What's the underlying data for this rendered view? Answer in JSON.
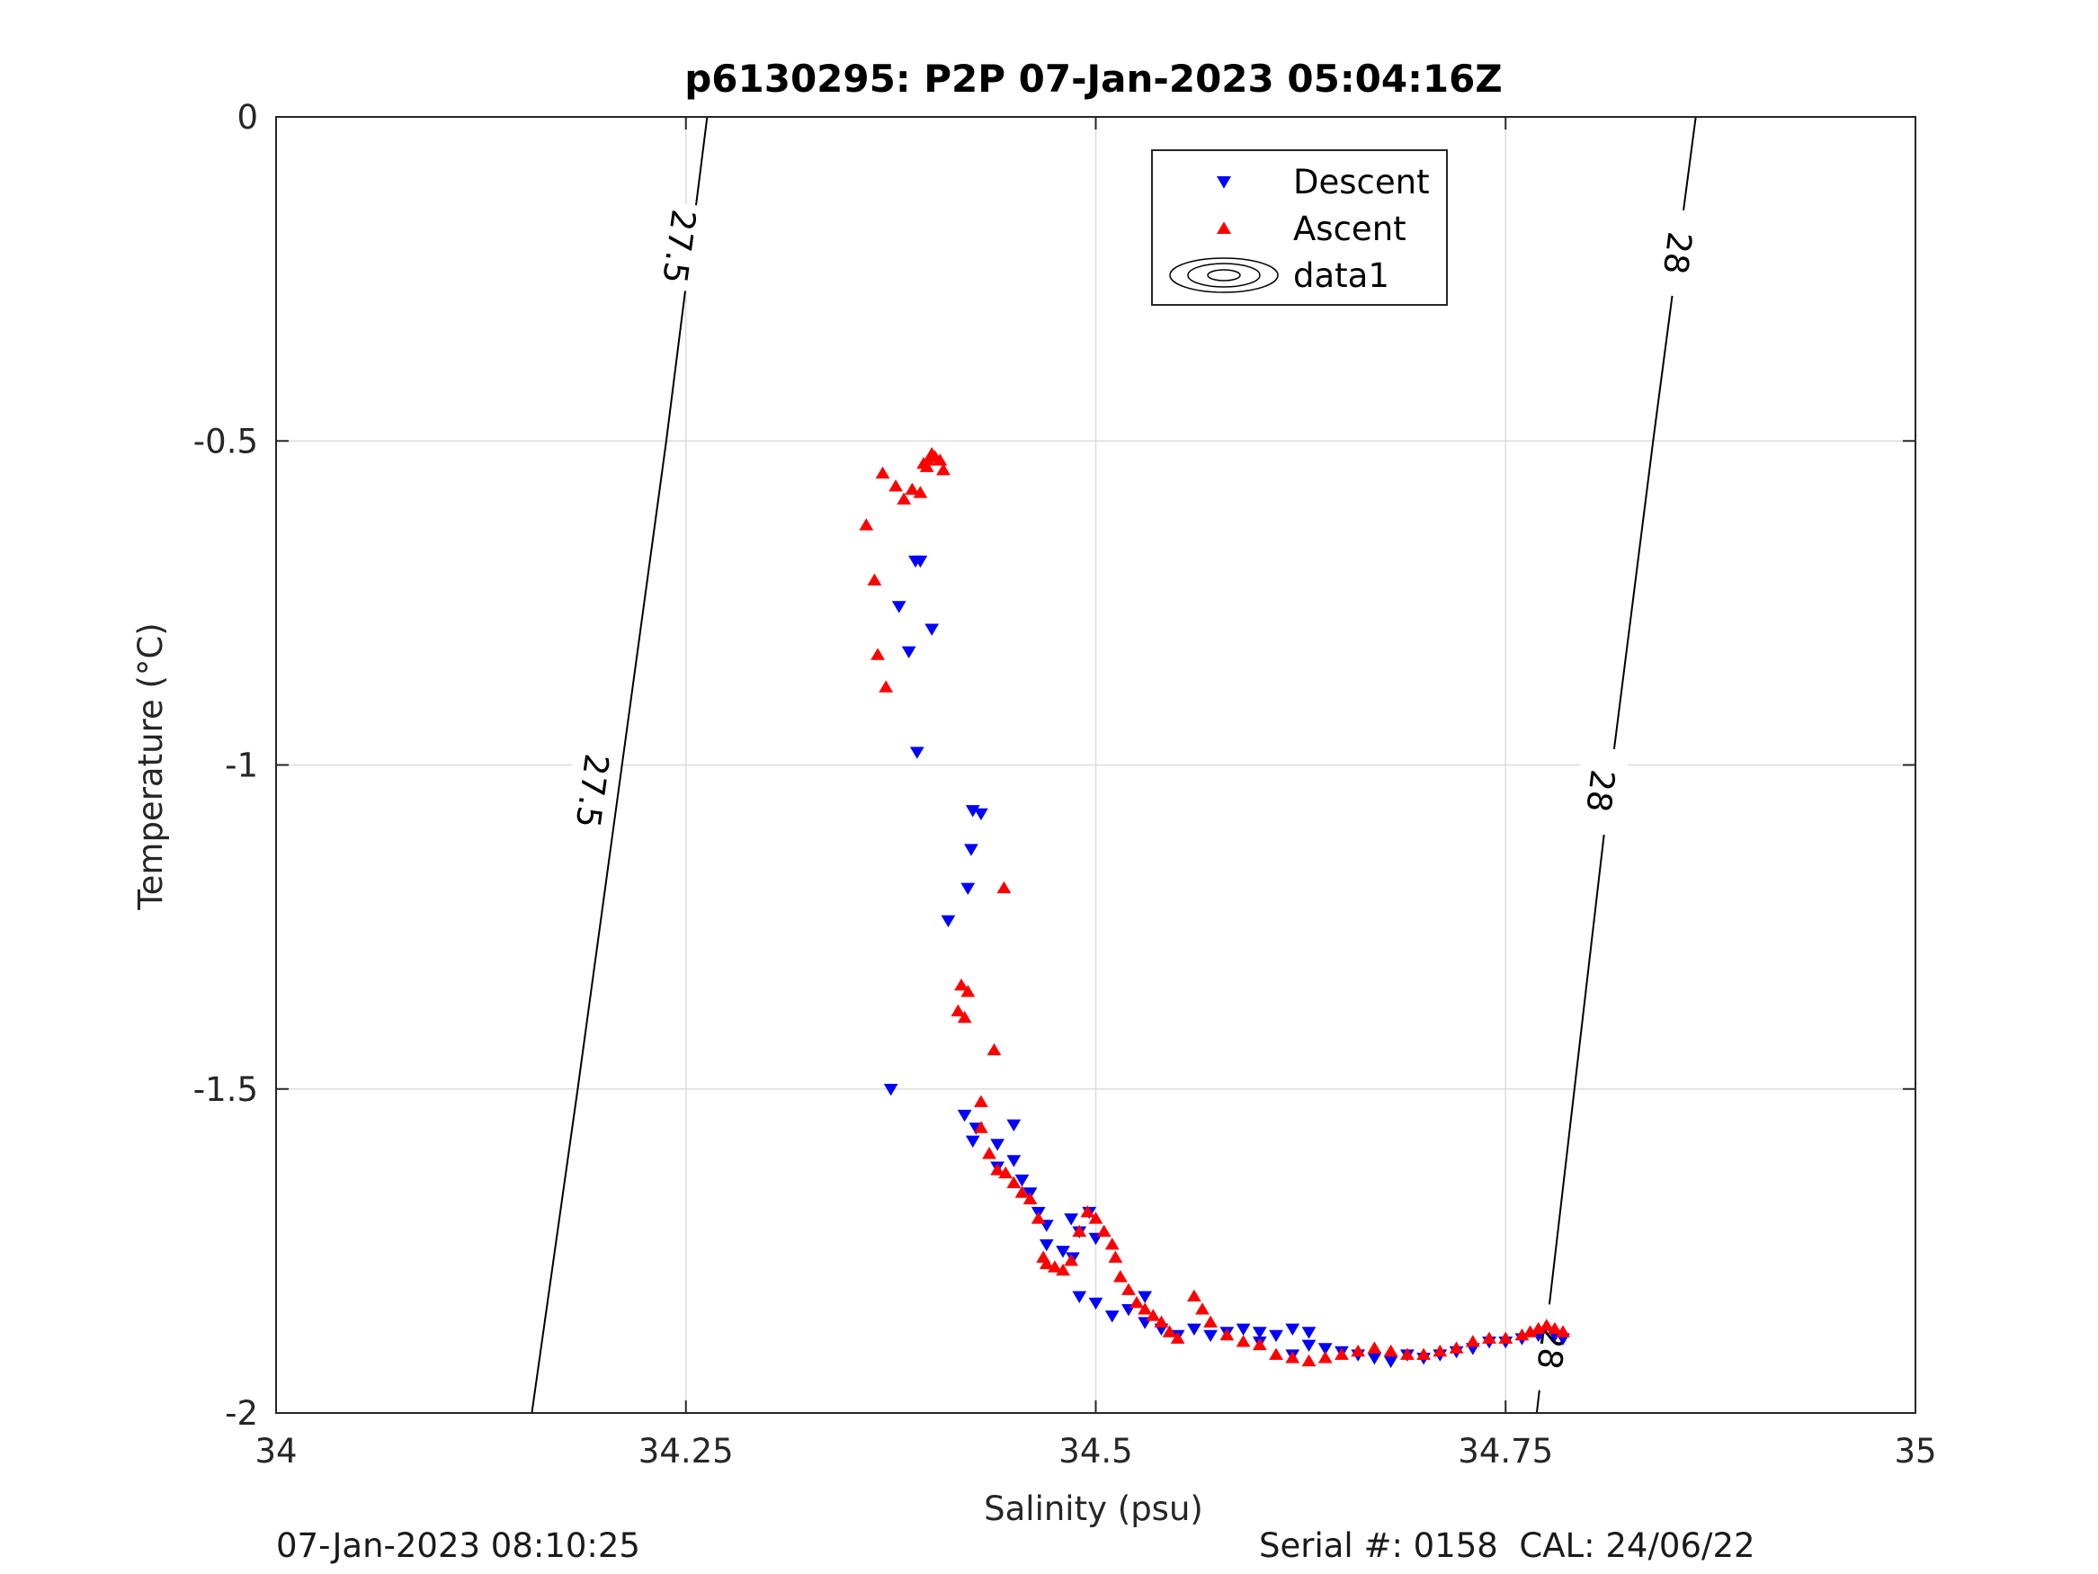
{
  "chart_data": {
    "type": "scatter",
    "title": "p6130295: P2P 07-Jan-2023 05:04:16Z",
    "xlabel": "Salinity (psu)",
    "ylabel": "Temperature (°C)",
    "xlim": [
      34,
      35
    ],
    "ylim": [
      -2,
      0
    ],
    "xticks": [
      34,
      34.25,
      34.5,
      34.75,
      35
    ],
    "xtick_labels": [
      "34",
      "34.25",
      "34.5",
      "34.75",
      "35"
    ],
    "yticks": [
      0,
      -0.5,
      -1,
      -1.5,
      -2
    ],
    "ytick_labels": [
      "0",
      "-0.5",
      "-1",
      "-1.5",
      "-2"
    ],
    "grid": true,
    "legend": {
      "placement": "top-right",
      "entries": [
        {
          "label": "Descent",
          "color": "#0000ff",
          "marker": "triangle-down"
        },
        {
          "label": "Ascent",
          "color": "#ff0000",
          "marker": "triangle-up"
        },
        {
          "label": "data1",
          "color": "#000000",
          "marker": "contour"
        }
      ]
    },
    "contours": [
      {
        "label": "27.5",
        "points": [
          [
            34.156,
            -2.0
          ],
          [
            34.184,
            -1.5
          ],
          [
            34.211,
            -1.0
          ],
          [
            34.238,
            -0.5
          ],
          [
            34.263,
            0.0
          ]
        ],
        "label_positions": [
          [
            34.246,
            -0.2
          ],
          [
            34.193,
            -1.04
          ]
        ]
      },
      {
        "label": "28",
        "points": [
          [
            34.769,
            -2.0
          ],
          [
            34.792,
            -1.5
          ],
          [
            34.815,
            -1.0
          ],
          [
            34.84,
            -0.5
          ],
          [
            34.866,
            0.0
          ]
        ],
        "label_positions": [
          [
            34.855,
            -0.21
          ],
          [
            34.808,
            -1.04
          ],
          [
            34.778,
            -1.9
          ]
        ]
      }
    ],
    "series": [
      {
        "name": "Descent",
        "color": "#0000ff",
        "marker": "triangle-down",
        "points": [
          [
            34.39,
            -0.685
          ],
          [
            34.393,
            -0.685
          ],
          [
            34.38,
            -0.755
          ],
          [
            34.386,
            -0.825
          ],
          [
            34.4,
            -0.79
          ],
          [
            34.391,
            -0.98
          ],
          [
            34.425,
            -1.07
          ],
          [
            34.43,
            -1.075
          ],
          [
            34.424,
            -1.13
          ],
          [
            34.422,
            -1.19
          ],
          [
            34.41,
            -1.24
          ],
          [
            34.375,
            -1.5
          ],
          [
            34.42,
            -1.54
          ],
          [
            34.427,
            -1.56
          ],
          [
            34.425,
            -1.58
          ],
          [
            34.44,
            -1.585
          ],
          [
            34.45,
            -1.555
          ],
          [
            34.45,
            -1.61
          ],
          [
            34.44,
            -1.62
          ],
          [
            34.455,
            -1.64
          ],
          [
            34.46,
            -1.66
          ],
          [
            34.465,
            -1.69
          ],
          [
            34.47,
            -1.71
          ],
          [
            34.47,
            -1.74
          ],
          [
            34.48,
            -1.75
          ],
          [
            34.486,
            -1.76
          ],
          [
            34.49,
            -1.72
          ],
          [
            34.496,
            -1.69
          ],
          [
            34.485,
            -1.7
          ],
          [
            34.5,
            -1.73
          ],
          [
            34.49,
            -1.82
          ],
          [
            34.5,
            -1.83
          ],
          [
            34.51,
            -1.85
          ],
          [
            34.52,
            -1.84
          ],
          [
            34.53,
            -1.82
          ],
          [
            34.53,
            -1.86
          ],
          [
            34.54,
            -1.87
          ],
          [
            34.55,
            -1.88
          ],
          [
            34.56,
            -1.87
          ],
          [
            34.57,
            -1.88
          ],
          [
            34.58,
            -1.875
          ],
          [
            34.59,
            -1.87
          ],
          [
            34.6,
            -1.875
          ],
          [
            34.61,
            -1.88
          ],
          [
            34.62,
            -1.87
          ],
          [
            34.63,
            -1.875
          ],
          [
            34.6,
            -1.89
          ],
          [
            34.62,
            -1.91
          ],
          [
            34.63,
            -1.895
          ],
          [
            34.64,
            -1.9
          ],
          [
            34.65,
            -1.905
          ],
          [
            34.66,
            -1.91
          ],
          [
            34.67,
            -1.915
          ],
          [
            34.68,
            -1.92
          ],
          [
            34.69,
            -1.91
          ],
          [
            34.7,
            -1.915
          ],
          [
            34.71,
            -1.91
          ],
          [
            34.72,
            -1.905
          ],
          [
            34.73,
            -1.9
          ],
          [
            34.74,
            -1.89
          ],
          [
            34.75,
            -1.89
          ],
          [
            34.76,
            -1.885
          ],
          [
            34.77,
            -1.88
          ],
          [
            34.78,
            -1.88
          ],
          [
            34.785,
            -1.885
          ]
        ]
      },
      {
        "name": "Ascent",
        "color": "#ff0000",
        "marker": "triangle-up",
        "points": [
          [
            34.37,
            -0.55
          ],
          [
            34.378,
            -0.57
          ],
          [
            34.383,
            -0.59
          ],
          [
            34.388,
            -0.575
          ],
          [
            34.393,
            -0.58
          ],
          [
            34.395,
            -0.535
          ],
          [
            34.398,
            -0.53
          ],
          [
            34.4,
            -0.52
          ],
          [
            34.402,
            -0.525
          ],
          [
            34.405,
            -0.53
          ],
          [
            34.407,
            -0.545
          ],
          [
            34.397,
            -0.54
          ],
          [
            34.36,
            -0.63
          ],
          [
            34.365,
            -0.715
          ],
          [
            34.367,
            -0.83
          ],
          [
            34.372,
            -0.88
          ],
          [
            34.444,
            -1.19
          ],
          [
            34.418,
            -1.34
          ],
          [
            34.422,
            -1.35
          ],
          [
            34.416,
            -1.38
          ],
          [
            34.42,
            -1.39
          ],
          [
            34.438,
            -1.44
          ],
          [
            34.43,
            -1.52
          ],
          [
            34.43,
            -1.56
          ],
          [
            34.435,
            -1.6
          ],
          [
            34.44,
            -1.625
          ],
          [
            34.445,
            -1.63
          ],
          [
            34.45,
            -1.645
          ],
          [
            34.455,
            -1.66
          ],
          [
            34.46,
            -1.67
          ],
          [
            34.465,
            -1.7
          ],
          [
            34.468,
            -1.76
          ],
          [
            34.47,
            -1.77
          ],
          [
            34.475,
            -1.775
          ],
          [
            34.48,
            -1.78
          ],
          [
            34.485,
            -1.765
          ],
          [
            34.49,
            -1.72
          ],
          [
            34.495,
            -1.69
          ],
          [
            34.5,
            -1.7
          ],
          [
            34.505,
            -1.72
          ],
          [
            34.51,
            -1.74
          ],
          [
            34.512,
            -1.76
          ],
          [
            34.515,
            -1.79
          ],
          [
            34.52,
            -1.81
          ],
          [
            34.525,
            -1.83
          ],
          [
            34.53,
            -1.84
          ],
          [
            34.535,
            -1.85
          ],
          [
            34.54,
            -1.86
          ],
          [
            34.545,
            -1.875
          ],
          [
            34.55,
            -1.885
          ],
          [
            34.56,
            -1.82
          ],
          [
            34.565,
            -1.84
          ],
          [
            34.57,
            -1.86
          ],
          [
            34.58,
            -1.88
          ],
          [
            34.59,
            -1.89
          ],
          [
            34.6,
            -1.895
          ],
          [
            34.61,
            -1.91
          ],
          [
            34.62,
            -1.915
          ],
          [
            34.63,
            -1.92
          ],
          [
            34.64,
            -1.915
          ],
          [
            34.65,
            -1.91
          ],
          [
            34.66,
            -1.905
          ],
          [
            34.67,
            -1.9
          ],
          [
            34.68,
            -1.905
          ],
          [
            34.69,
            -1.91
          ],
          [
            34.7,
            -1.91
          ],
          [
            34.71,
            -1.905
          ],
          [
            34.72,
            -1.9
          ],
          [
            34.73,
            -1.89
          ],
          [
            34.74,
            -1.885
          ],
          [
            34.75,
            -1.885
          ],
          [
            34.76,
            -1.88
          ],
          [
            34.765,
            -1.875
          ],
          [
            34.77,
            -1.87
          ],
          [
            34.775,
            -1.865
          ],
          [
            34.78,
            -1.87
          ],
          [
            34.785,
            -1.875
          ]
        ]
      }
    ]
  },
  "footer": {
    "left": "07-Jan-2023 08:10:25",
    "right": "Serial #: 0158  CAL: 24/06/22"
  }
}
